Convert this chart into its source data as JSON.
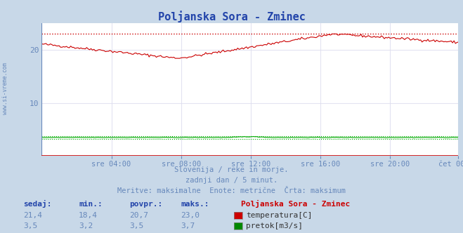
{
  "title": "Poljanska Sora - Zminec",
  "title_color": "#2244aa",
  "bg_color": "#c8d8e8",
  "plot_bg_color": "#ffffff",
  "grid_color": "#ddddee",
  "watermark": "www.si-vreme.com",
  "watermark_color": "#6688bb",
  "subtitle_lines": [
    "Slovenija / reke in morje.",
    "zadnji dan / 5 minut.",
    "Meritve: maksimalne  Enote: metrične  Črta: maksimum"
  ],
  "subtitle_color": "#6688bb",
  "xlabel_ticks": [
    "sre 04:00",
    "sre 08:00",
    "sre 12:00",
    "sre 16:00",
    "sre 20:00",
    "čet 00:00"
  ],
  "tick_color": "#6688bb",
  "ylabel_ticks": [
    "",
    "10",
    "20"
  ],
  "ylim": [
    0,
    25
  ],
  "xlim_n": 288,
  "temp_color": "#cc0000",
  "flow_color": "#00aa00",
  "temp_max": 23.0,
  "temp_min": 18.4,
  "temp_avg": 20.7,
  "temp_now": 21.4,
  "flow_max": 3.7,
  "flow_min": 3.2,
  "flow_avg": 3.5,
  "flow_now": 3.5,
  "legend_title": "Poljanska Sora - Zminec",
  "legend_title_color": "#cc0000",
  "legend_items": [
    {
      "label": "temperatura[C]",
      "color": "#cc0000"
    },
    {
      "label": "pretok[m3/s]",
      "color": "#008800"
    }
  ],
  "stats_header_color": "#2244aa",
  "stats_val_color": "#6688bb",
  "stats_headers": [
    "sedaj:",
    "min.:",
    "povpr.:",
    "maks.:"
  ],
  "stats_temp": [
    "21,4",
    "18,4",
    "20,7",
    "23,0"
  ],
  "stats_flow": [
    "3,5",
    "3,2",
    "3,5",
    "3,7"
  ],
  "border_color": "#8899bb",
  "axis_left_color": "#6688bb",
  "axis_bottom_color": "#cc0000"
}
